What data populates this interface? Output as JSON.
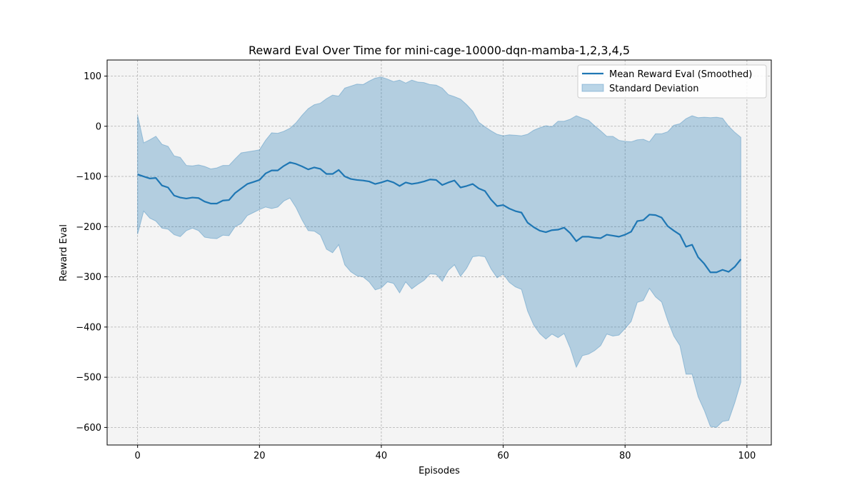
{
  "chart_data": {
    "type": "line",
    "title": "Reward Eval Over Time for mini-cage-10000-dqn-mamba-1,2,3,4,5",
    "xlabel": "Episodes",
    "ylabel": "Reward Eval",
    "xlim": [
      -5,
      104
    ],
    "ylim": [
      -635,
      132
    ],
    "xticks": [
      0,
      20,
      40,
      60,
      80,
      100
    ],
    "yticks": [
      100,
      0,
      -100,
      -200,
      -300,
      -400,
      -500,
      -600
    ],
    "xtick_labels": [
      "0",
      "20",
      "40",
      "60",
      "80",
      "100"
    ],
    "ytick_labels": [
      "100",
      "0",
      "−100",
      "−200",
      "−300",
      "−400",
      "−500",
      "−600"
    ],
    "grid": true,
    "legend_position": "top-right",
    "series": [
      {
        "name": "Mean Reward Eval (Smoothed)",
        "color": "#1f77b4",
        "points": [
          [
            0,
            -96
          ],
          [
            1,
            -100
          ],
          [
            2,
            -104
          ],
          [
            3,
            -103
          ],
          [
            4,
            -118
          ],
          [
            5,
            -122
          ],
          [
            6,
            -138
          ],
          [
            7,
            -142
          ],
          [
            8,
            -144
          ],
          [
            9,
            -142
          ],
          [
            10,
            -143
          ],
          [
            11,
            -150
          ],
          [
            12,
            -154
          ],
          [
            13,
            -154
          ],
          [
            14,
            -148
          ],
          [
            15,
            -147
          ],
          [
            16,
            -133
          ],
          [
            17,
            -124
          ],
          [
            18,
            -115
          ],
          [
            19,
            -111
          ],
          [
            20,
            -107
          ],
          [
            21,
            -94
          ],
          [
            22,
            -88
          ],
          [
            23,
            -88
          ],
          [
            24,
            -79
          ],
          [
            25,
            -72
          ],
          [
            26,
            -75
          ],
          [
            27,
            -80
          ],
          [
            28,
            -86
          ],
          [
            29,
            -82
          ],
          [
            30,
            -85
          ],
          [
            31,
            -95
          ],
          [
            32,
            -95
          ],
          [
            33,
            -87
          ],
          [
            34,
            -100
          ],
          [
            35,
            -105
          ],
          [
            36,
            -107
          ],
          [
            37,
            -108
          ],
          [
            38,
            -110
          ],
          [
            39,
            -115
          ],
          [
            40,
            -112
          ],
          [
            41,
            -108
          ],
          [
            42,
            -112
          ],
          [
            43,
            -119
          ],
          [
            44,
            -112
          ],
          [
            45,
            -115
          ],
          [
            46,
            -113
          ],
          [
            47,
            -110
          ],
          [
            48,
            -106
          ],
          [
            49,
            -107
          ],
          [
            50,
            -117
          ],
          [
            51,
            -112
          ],
          [
            52,
            -108
          ],
          [
            53,
            -122
          ],
          [
            54,
            -119
          ],
          [
            55,
            -115
          ],
          [
            56,
            -124
          ],
          [
            57,
            -129
          ],
          [
            58,
            -146
          ],
          [
            59,
            -159
          ],
          [
            60,
            -157
          ],
          [
            61,
            -164
          ],
          [
            62,
            -169
          ],
          [
            63,
            -172
          ],
          [
            64,
            -192
          ],
          [
            65,
            -201
          ],
          [
            66,
            -208
          ],
          [
            67,
            -211
          ],
          [
            68,
            -207
          ],
          [
            69,
            -206
          ],
          [
            70,
            -202
          ],
          [
            71,
            -213
          ],
          [
            72,
            -229
          ],
          [
            73,
            -220
          ],
          [
            74,
            -220
          ],
          [
            75,
            -222
          ],
          [
            76,
            -223
          ],
          [
            77,
            -216
          ],
          [
            78,
            -218
          ],
          [
            79,
            -220
          ],
          [
            80,
            -216
          ],
          [
            81,
            -210
          ],
          [
            82,
            -189
          ],
          [
            83,
            -187
          ],
          [
            84,
            -176
          ],
          [
            85,
            -177
          ],
          [
            86,
            -182
          ],
          [
            87,
            -199
          ],
          [
            88,
            -208
          ],
          [
            89,
            -216
          ],
          [
            90,
            -240
          ],
          [
            91,
            -236
          ],
          [
            92,
            -261
          ],
          [
            93,
            -274
          ],
          [
            94,
            -291
          ],
          [
            95,
            -291
          ],
          [
            96,
            -286
          ],
          [
            97,
            -290
          ],
          [
            98,
            -280
          ],
          [
            99,
            -265
          ]
        ]
      },
      {
        "name": "Standard Deviation",
        "color": "#1f77b4",
        "opacity": 0.3,
        "upper": [
          [
            0,
            22
          ],
          [
            1,
            -33
          ],
          [
            2,
            -27
          ],
          [
            3,
            -20
          ],
          [
            4,
            -36
          ],
          [
            5,
            -40
          ],
          [
            6,
            -59
          ],
          [
            7,
            -62
          ],
          [
            8,
            -78
          ],
          [
            9,
            -79
          ],
          [
            10,
            -77
          ],
          [
            11,
            -80
          ],
          [
            12,
            -85
          ],
          [
            13,
            -83
          ],
          [
            14,
            -78
          ],
          [
            15,
            -78
          ],
          [
            16,
            -65
          ],
          [
            17,
            -53
          ],
          [
            18,
            -51
          ],
          [
            19,
            -49
          ],
          [
            20,
            -47
          ],
          [
            21,
            -28
          ],
          [
            22,
            -13
          ],
          [
            23,
            -14
          ],
          [
            24,
            -10
          ],
          [
            25,
            -4
          ],
          [
            26,
            7
          ],
          [
            27,
            22
          ],
          [
            28,
            35
          ],
          [
            29,
            43
          ],
          [
            30,
            46
          ],
          [
            31,
            55
          ],
          [
            32,
            62
          ],
          [
            33,
            60
          ],
          [
            34,
            76
          ],
          [
            35,
            80
          ],
          [
            36,
            84
          ],
          [
            37,
            83
          ],
          [
            38,
            90
          ],
          [
            39,
            96
          ],
          [
            40,
            98
          ],
          [
            41,
            94
          ],
          [
            42,
            89
          ],
          [
            43,
            92
          ],
          [
            44,
            86
          ],
          [
            45,
            92
          ],
          [
            46,
            88
          ],
          [
            47,
            87
          ],
          [
            48,
            83
          ],
          [
            49,
            82
          ],
          [
            50,
            76
          ],
          [
            51,
            63
          ],
          [
            52,
            59
          ],
          [
            53,
            54
          ],
          [
            54,
            43
          ],
          [
            55,
            30
          ],
          [
            56,
            8
          ],
          [
            57,
            -1
          ],
          [
            58,
            -9
          ],
          [
            59,
            -16
          ],
          [
            60,
            -19
          ],
          [
            61,
            -17
          ],
          [
            62,
            -18
          ],
          [
            63,
            -19
          ],
          [
            64,
            -16
          ],
          [
            65,
            -8
          ],
          [
            66,
            -3
          ],
          [
            67,
            1
          ],
          [
            68,
            -1
          ],
          [
            69,
            10
          ],
          [
            70,
            10
          ],
          [
            71,
            14
          ],
          [
            72,
            21
          ],
          [
            73,
            16
          ],
          [
            74,
            12
          ],
          [
            75,
            1
          ],
          [
            76,
            -9
          ],
          [
            77,
            -20
          ],
          [
            78,
            -20
          ],
          [
            79,
            -28
          ],
          [
            80,
            -30
          ],
          [
            81,
            -31
          ],
          [
            82,
            -27
          ],
          [
            83,
            -26
          ],
          [
            84,
            -31
          ],
          [
            85,
            -15
          ],
          [
            86,
            -15
          ],
          [
            87,
            -11
          ],
          [
            88,
            2
          ],
          [
            89,
            5
          ],
          [
            90,
            15
          ],
          [
            91,
            21
          ],
          [
            92,
            17
          ],
          [
            93,
            18
          ],
          [
            94,
            17
          ],
          [
            95,
            18
          ],
          [
            96,
            16
          ],
          [
            97,
            0
          ],
          [
            98,
            -12
          ],
          [
            99,
            -22
          ]
        ],
        "lower": [
          [
            0,
            -215
          ],
          [
            1,
            -169
          ],
          [
            2,
            -183
          ],
          [
            3,
            -189
          ],
          [
            4,
            -203
          ],
          [
            5,
            -205
          ],
          [
            6,
            -216
          ],
          [
            7,
            -220
          ],
          [
            8,
            -208
          ],
          [
            9,
            -203
          ],
          [
            10,
            -208
          ],
          [
            11,
            -221
          ],
          [
            12,
            -223
          ],
          [
            13,
            -224
          ],
          [
            14,
            -217
          ],
          [
            15,
            -218
          ],
          [
            16,
            -200
          ],
          [
            17,
            -194
          ],
          [
            18,
            -178
          ],
          [
            19,
            -172
          ],
          [
            20,
            -166
          ],
          [
            21,
            -161
          ],
          [
            22,
            -164
          ],
          [
            23,
            -161
          ],
          [
            24,
            -149
          ],
          [
            25,
            -143
          ],
          [
            26,
            -162
          ],
          [
            27,
            -187
          ],
          [
            28,
            -208
          ],
          [
            29,
            -209
          ],
          [
            30,
            -217
          ],
          [
            31,
            -245
          ],
          [
            32,
            -252
          ],
          [
            33,
            -236
          ],
          [
            34,
            -276
          ],
          [
            35,
            -290
          ],
          [
            36,
            -298
          ],
          [
            37,
            -300
          ],
          [
            38,
            -310
          ],
          [
            39,
            -326
          ],
          [
            40,
            -322
          ],
          [
            41,
            -310
          ],
          [
            42,
            -313
          ],
          [
            43,
            -332
          ],
          [
            44,
            -310
          ],
          [
            45,
            -324
          ],
          [
            46,
            -315
          ],
          [
            47,
            -307
          ],
          [
            48,
            -294
          ],
          [
            49,
            -295
          ],
          [
            50,
            -309
          ],
          [
            51,
            -287
          ],
          [
            52,
            -276
          ],
          [
            53,
            -299
          ],
          [
            54,
            -283
          ],
          [
            55,
            -260
          ],
          [
            56,
            -258
          ],
          [
            57,
            -260
          ],
          [
            58,
            -284
          ],
          [
            59,
            -302
          ],
          [
            60,
            -294
          ],
          [
            61,
            -311
          ],
          [
            62,
            -320
          ],
          [
            63,
            -325
          ],
          [
            64,
            -368
          ],
          [
            65,
            -396
          ],
          [
            66,
            -413
          ],
          [
            67,
            -424
          ],
          [
            68,
            -414
          ],
          [
            69,
            -421
          ],
          [
            70,
            -413
          ],
          [
            71,
            -442
          ],
          [
            72,
            -480
          ],
          [
            73,
            -457
          ],
          [
            74,
            -454
          ],
          [
            75,
            -447
          ],
          [
            76,
            -437
          ],
          [
            77,
            -414
          ],
          [
            78,
            -418
          ],
          [
            79,
            -416
          ],
          [
            80,
            -403
          ],
          [
            81,
            -389
          ],
          [
            82,
            -351
          ],
          [
            83,
            -347
          ],
          [
            84,
            -323
          ],
          [
            85,
            -340
          ],
          [
            86,
            -350
          ],
          [
            87,
            -387
          ],
          [
            88,
            -418
          ],
          [
            89,
            -437
          ],
          [
            90,
            -494
          ],
          [
            91,
            -494
          ],
          [
            92,
            -539
          ],
          [
            93,
            -566
          ],
          [
            94,
            -598
          ],
          [
            95,
            -600
          ],
          [
            96,
            -588
          ],
          [
            97,
            -586
          ],
          [
            98,
            -551
          ],
          [
            99,
            -510
          ]
        ]
      }
    ]
  }
}
